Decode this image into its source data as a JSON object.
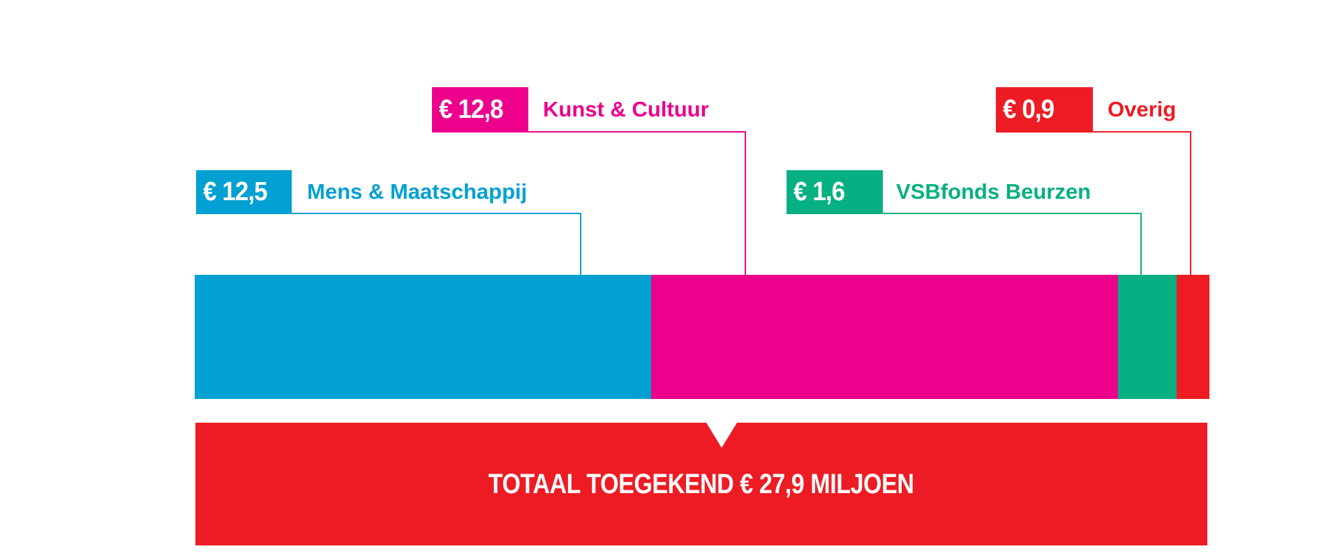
{
  "chart_data": {
    "type": "bar",
    "orientation": "horizontal-stacked",
    "unit": "miljoen euro",
    "categories": [
      "Mens & Maatschappij",
      "Kunst & Cultuur",
      "VSBfonds Beurzen",
      "Overig"
    ],
    "values": [
      12.5,
      12.8,
      1.6,
      0.9
    ],
    "value_labels": [
      "€ 12,5",
      "€ 12,8",
      "€ 1,6",
      "€ 0,9"
    ],
    "colors": [
      "#00A0D2",
      "#EC008C",
      "#06B083",
      "#ED1C24"
    ],
    "total_label": "TOTAAL TOEGEKEND € 27,9 MILJOEN",
    "total_color": "#ED1C24",
    "legend": "callouts-above"
  }
}
